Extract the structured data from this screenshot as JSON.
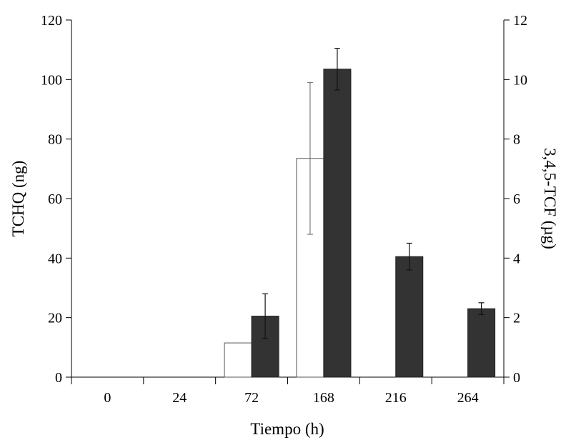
{
  "chart_data": {
    "type": "bar",
    "title": "",
    "xlabel": "Tiempo (h)",
    "ylabel_left": "TCHQ (ng)",
    "ylabel_right": "3,4,5-TCF (µg)",
    "categories": [
      "0",
      "24",
      "72",
      "168",
      "216",
      "264"
    ],
    "ylim_left": [
      0,
      120
    ],
    "ylim_right": [
      0,
      12
    ],
    "yticks_left": [
      "0",
      "20",
      "40",
      "60",
      "80",
      "100",
      "120"
    ],
    "yticks_right": [
      "0",
      "2",
      "4",
      "6",
      "8",
      "10",
      "12"
    ],
    "grid": false,
    "legend": "none",
    "series": [
      {
        "axis": "left",
        "fill": "#ffffff",
        "stroke": "#555555",
        "values": [
          0,
          0,
          11.5,
          73.5,
          0,
          0
        ],
        "errors": [
          0,
          0,
          0,
          25.5,
          0,
          0
        ]
      },
      {
        "axis": "right",
        "fill": "#333333",
        "stroke": "#222222",
        "values": [
          0,
          0,
          2.05,
          10.35,
          4.05,
          2.3
        ],
        "errors": [
          0,
          0,
          0.75,
          0.7,
          0.45,
          0.2
        ]
      }
    ]
  }
}
